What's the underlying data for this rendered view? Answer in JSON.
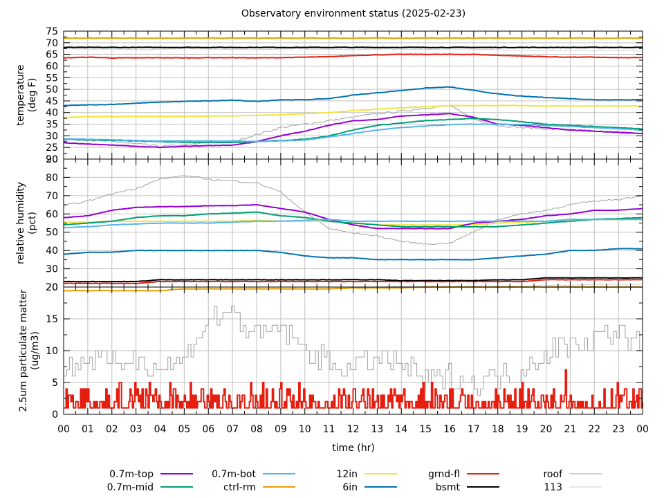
{
  "chart_data": {
    "type": "line",
    "title": "Observatory environment status (2025-02-23)",
    "xlabel": "time (hr)",
    "x_ticks": [
      "00",
      "01",
      "02",
      "03",
      "04",
      "05",
      "06",
      "07",
      "08",
      "09",
      "10",
      "11",
      "12",
      "13",
      "14",
      "15",
      "16",
      "17",
      "18",
      "19",
      "20",
      "21",
      "22",
      "23",
      "00"
    ],
    "xlim": [
      0,
      24
    ],
    "grid": true,
    "legend_position": "bottom",
    "legend": [
      {
        "name": "0.7m-top",
        "color": "#9400d3"
      },
      {
        "name": "0.7m-mid",
        "color": "#009e73"
      },
      {
        "name": "0.7m-bot",
        "color": "#56b4e9"
      },
      {
        "name": "ctrl-rm",
        "color": "#e69f00"
      },
      {
        "name": "12in",
        "color": "#f0e442"
      },
      {
        "name": "6in",
        "color": "#0072b2"
      },
      {
        "name": "grnd-fl",
        "color": "#e51e10"
      },
      {
        "name": "bsmt",
        "color": "#000000"
      },
      {
        "name": "roof",
        "color": "#a0a0a0"
      },
      {
        "name": "113",
        "color": "#d0d0d0"
      }
    ],
    "panels": [
      {
        "ylabel": "temperature",
        "ylabel2": "(deg F)",
        "ylim": [
          20,
          75
        ],
        "y_ticks": [
          20,
          25,
          30,
          35,
          40,
          45,
          50,
          55,
          60,
          65,
          70,
          75
        ],
        "hours": [
          0,
          1,
          2,
          3,
          4,
          5,
          6,
          7,
          8,
          9,
          10,
          11,
          12,
          13,
          14,
          15,
          16,
          17,
          18,
          19,
          20,
          21,
          22,
          23,
          24
        ],
        "series": [
          {
            "name": "113",
            "values": [
              67.5,
              67.2,
              67.3,
              67,
              67.2,
              67.4,
              67.3,
              67.1,
              67,
              67.3,
              67.3,
              67.2,
              67,
              67.3,
              67.2,
              67.1,
              67.3,
              67.2,
              67,
              66.6,
              66.6,
              66.8,
              66.5,
              66.7,
              66.5
            ]
          },
          {
            "name": "roof",
            "values": [
              28.5,
              28.2,
              27.5,
              26.5,
              25.5,
              26,
              27,
              27.5,
              30.5,
              33.5,
              35,
              36.5,
              38,
              39.5,
              40.5,
              42,
              43,
              37,
              34.5,
              33.5,
              33,
              32.5,
              32,
              31.5,
              30.5
            ]
          },
          {
            "name": "ctrl-rm",
            "values": [
              72,
              72,
              72,
              72,
              72,
              72,
              72,
              72,
              72,
              72,
              72,
              72,
              72,
              72,
              72,
              72,
              72,
              72,
              72,
              72,
              72,
              72,
              72,
              72,
              72
            ]
          },
          {
            "name": "bsmt",
            "values": [
              68,
              68,
              68,
              68,
              68,
              68,
              68,
              68,
              68,
              68,
              68,
              68,
              68,
              68,
              68,
              68,
              68,
              68,
              68,
              68,
              68,
              68,
              68,
              68,
              68
            ]
          },
          {
            "name": "grnd-fl",
            "values": [
              63.5,
              63.8,
              63.5,
              63.5,
              63.6,
              63.5,
              63.6,
              63.6,
              63.5,
              63.6,
              63.8,
              64,
              64.5,
              64.8,
              65,
              65,
              65,
              65,
              64.6,
              64.3,
              64,
              63.8,
              63.8,
              63.6,
              63.6
            ]
          },
          {
            "name": "6in",
            "values": [
              43,
              43.3,
              43.5,
              44,
              44.5,
              44.8,
              45,
              45.3,
              44.8,
              45.5,
              45.5,
              46,
              47.5,
              48.5,
              49.5,
              50.5,
              51,
              49.5,
              48,
              47,
              46.5,
              46,
              45.5,
              45.5,
              45.5
            ]
          },
          {
            "name": "12in",
            "values": [
              38,
              38.2,
              38.3,
              38.3,
              38.4,
              38.4,
              38.5,
              38.6,
              38.8,
              39,
              39.5,
              40,
              40.8,
              41.5,
              42,
              42.5,
              43,
              43,
              43,
              43,
              42.8,
              42.8,
              42.8,
              42.8,
              null
            ]
          },
          {
            "name": "0.7m-top",
            "values": [
              27,
              26.5,
              26,
              25.5,
              25,
              25.5,
              25.8,
              26,
              27.5,
              30,
              32,
              34.5,
              36.5,
              37,
              38.5,
              39,
              39.5,
              38,
              35,
              34.5,
              33.5,
              32.5,
              32,
              31.5,
              31
            ]
          },
          {
            "name": "0.7m-mid",
            "values": [
              28.5,
              28.3,
              28,
              27.8,
              27.5,
              27.3,
              27.2,
              27.2,
              27.5,
              28,
              28.5,
              30,
              32.5,
              34.5,
              35.5,
              36.5,
              37,
              37.5,
              37,
              36,
              35,
              34.5,
              34,
              33.5,
              33
            ]
          },
          {
            "name": "0.7m-bot",
            "values": [
              28.8,
              28.5,
              28.3,
              28,
              27.8,
              27.8,
              27.8,
              27.8,
              27.6,
              27.8,
              28.2,
              29.5,
              31,
              32.5,
              33.5,
              34.2,
              34.8,
              35,
              35,
              34.8,
              34.5,
              34,
              33.5,
              33,
              32.5
            ]
          }
        ]
      },
      {
        "ylabel": "relative humidity",
        "ylabel2": "(pct)",
        "ylim": [
          20,
          90
        ],
        "y_ticks": [
          20,
          30,
          40,
          50,
          60,
          70,
          80,
          90
        ],
        "hours": [
          0,
          1,
          2,
          3,
          4,
          5,
          6,
          7,
          8,
          9,
          10,
          11,
          12,
          13,
          14,
          15,
          16,
          17,
          18,
          19,
          20,
          21,
          22,
          23,
          24
        ],
        "series": [
          {
            "name": "113",
            "values": [
              20,
              20,
              20,
              20,
              20,
              20,
              20,
              20,
              20,
              20,
              20,
              20,
              20,
              20,
              20.5,
              20.5,
              20.5,
              20.5,
              20.5,
              20.5,
              21,
              21,
              21.5,
              21.5,
              21.5
            ]
          },
          {
            "name": "roof",
            "values": [
              64.5,
              67,
              71,
              74,
              79,
              81,
              79,
              78,
              77,
              72,
              61,
              52,
              49.5,
              48,
              45,
              43.5,
              44,
              50,
              57,
              60,
              62,
              65,
              67,
              68,
              70
            ]
          },
          {
            "name": "ctrl-rm",
            "values": [
              18,
              18,
              18,
              18,
              18,
              19,
              19,
              19,
              19,
              19,
              19,
              19,
              19.5,
              19.5,
              19.5,
              20,
              20,
              20,
              20,
              20,
              20,
              20,
              20,
              20,
              20
            ]
          },
          {
            "name": "bsmt",
            "values": [
              23,
              23,
              23,
              23,
              24,
              24,
              24,
              24,
              24,
              24,
              24,
              24,
              24,
              24,
              23.5,
              23.5,
              23.5,
              23.5,
              24,
              24,
              25,
              25,
              25,
              25,
              25
            ]
          },
          {
            "name": "grnd-fl",
            "values": [
              22,
              22,
              22,
              22,
              23,
              23,
              23,
              23,
              23,
              23,
              23,
              23,
              23,
              23,
              23,
              23,
              23,
              23,
              23,
              23,
              24,
              24,
              24,
              24,
              24
            ]
          },
          {
            "name": "6in",
            "values": [
              38,
              39,
              39,
              40,
              40,
              40,
              40,
              40,
              40,
              39,
              37,
              36,
              36,
              35,
              35,
              35,
              35,
              35,
              36,
              37,
              38,
              40,
              40,
              41,
              41
            ]
          },
          {
            "name": "12in",
            "values": [
              55.5,
              55.5,
              56,
              56,
              56,
              56,
              56,
              56,
              56.5,
              56,
              56,
              56,
              55,
              54,
              54,
              54,
              54,
              54,
              55,
              55.5,
              56,
              56,
              57,
              57,
              57
            ]
          },
          {
            "name": "0.7m-top",
            "values": [
              58,
              59,
              62,
              63.5,
              64,
              64,
              64.5,
              64.5,
              65,
              63,
              61,
              57,
              54,
              52,
              52,
              52,
              52,
              55,
              56,
              57,
              59,
              60,
              62,
              62,
              63
            ]
          },
          {
            "name": "0.7m-mid",
            "values": [
              54,
              55,
              56,
              58,
              59,
              59,
              60,
              60.5,
              61,
              59,
              58,
              56,
              55,
              54,
              53,
              53,
              53,
              53,
              53,
              54,
              55,
              56,
              57,
              57.5,
              58
            ]
          },
          {
            "name": "0.7m-bot",
            "values": [
              52.5,
              53,
              54,
              54.5,
              55,
              55,
              55,
              55.5,
              56,
              56,
              56.5,
              57,
              56,
              56,
              56,
              56,
              56,
              56,
              56,
              56,
              56,
              57,
              57,
              57,
              57
            ]
          }
        ]
      },
      {
        "ylabel": "2.5um particulate matter",
        "ylabel2": "(ug/m3)",
        "ylim": [
          0,
          20
        ],
        "y_ticks": [
          0,
          5,
          10,
          15,
          20
        ],
        "hours": [
          0,
          1,
          2,
          3,
          4,
          5,
          6,
          7,
          8,
          9,
          10,
          11,
          12,
          13,
          14,
          15,
          16,
          17,
          18,
          19,
          20,
          21,
          22,
          23,
          24
        ],
        "series": [
          {
            "name": "roof",
            "values": [
              7,
              9,
              8,
              9,
              7,
              9,
              15,
              16,
              12,
              14,
              10,
              8,
              7,
              9,
              8,
              5,
              6,
              5,
              6,
              7,
              10,
              11,
              12,
              13,
              10
            ]
          },
          {
            "name": "grnd-fl",
            "values": [
              2,
              2,
              2,
              2,
              2,
              2,
              2,
              2,
              2,
              2,
              2,
              2,
              2,
              2,
              2,
              2,
              2,
              2,
              2,
              2,
              2,
              2,
              2,
              2,
              2
            ]
          }
        ]
      }
    ]
  }
}
